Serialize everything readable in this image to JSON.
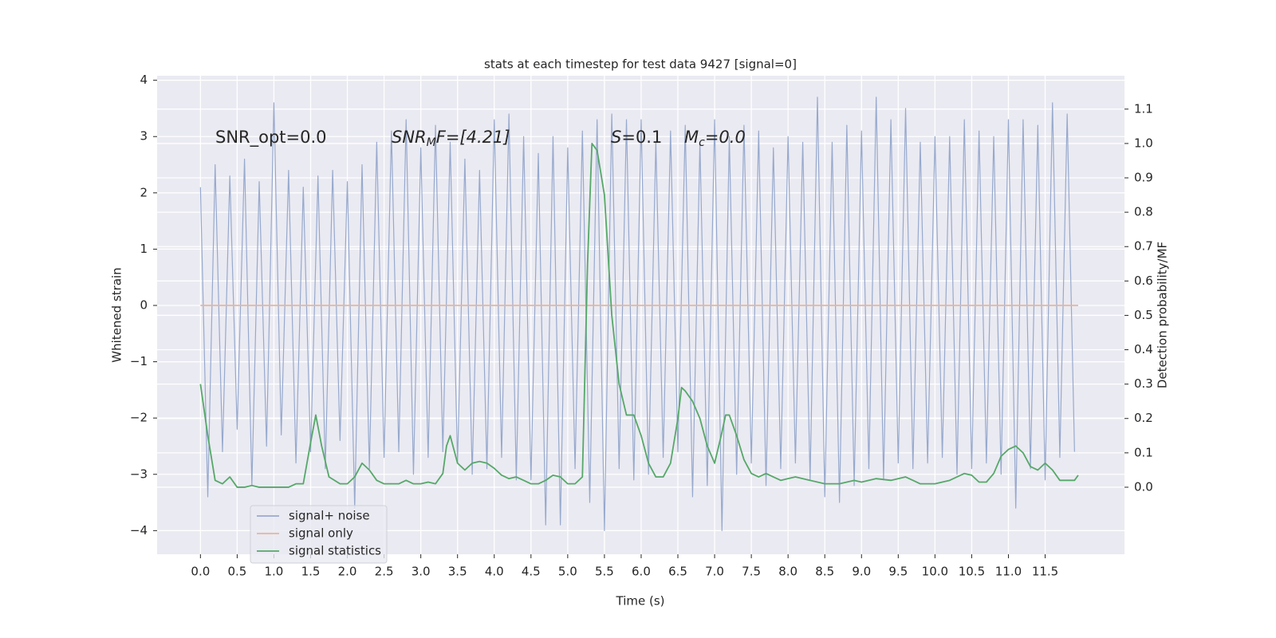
{
  "chart_data": {
    "type": "line",
    "title": "stats at each timestep for test data 9427 [signal=0]",
    "xlabel": "Time (s)",
    "ylabel": "Whitened strain",
    "y2label": "Detection probability/MF",
    "annotations": [
      {
        "text": "SNR_opt=0.0"
      },
      {
        "text": "SNR",
        "sub": "M",
        "rest": "F=[4.21]"
      },
      {
        "text": "S",
        "rest": "=0.1"
      },
      {
        "text": "M",
        "sub": "c",
        "rest": "=0.0"
      }
    ],
    "xlim": [
      -0.59,
      12.58
    ],
    "ylim": [
      -4.42,
      4.08
    ],
    "y2lim": [
      -0.195,
      1.197
    ],
    "xticks": [
      {
        "value": 0,
        "label": "0.0"
      },
      0.5,
      {
        "value": 1,
        "label": "1.0"
      },
      1.5,
      {
        "value": 2,
        "label": "2.0"
      },
      2.5,
      {
        "value": 3,
        "label": "3.0"
      },
      3.5,
      {
        "value": 4,
        "label": "4.0"
      },
      4.5,
      {
        "value": 5,
        "label": "5.0"
      },
      5.5,
      {
        "value": 6,
        "label": "6.0"
      },
      6.5,
      {
        "value": 7,
        "label": "7.0"
      },
      7.5,
      {
        "value": 8,
        "label": "8.0"
      },
      8.5,
      {
        "value": 9,
        "label": "9.0"
      },
      9.5,
      {
        "value": 10,
        "label": "10.0"
      },
      10.5,
      {
        "value": 11,
        "label": "11.0"
      },
      11.5
    ],
    "yticks": [
      {
        "value": -4,
        "label": "−4"
      },
      {
        "value": -3,
        "label": "−3"
      },
      {
        "value": -2,
        "label": "−2"
      },
      {
        "value": -1,
        "label": "−1"
      },
      0,
      1,
      2,
      3,
      4
    ],
    "y2ticks": [
      {
        "value": 0,
        "label": "0.0"
      },
      0.1,
      0.2,
      0.3,
      0.4,
      0.5,
      0.6,
      0.7,
      0.8,
      0.9,
      {
        "value": 1,
        "label": "1.0"
      },
      1.1
    ],
    "grid": true,
    "legend": "lower left",
    "series": [
      {
        "name": "signal+ noise",
        "color": "#97a9cd",
        "x": [
          0.0,
          0.1,
          0.2,
          0.3,
          0.4,
          0.5,
          0.6,
          0.7,
          0.8,
          0.9,
          1.0,
          1.1,
          1.2,
          1.3,
          1.4,
          1.5,
          1.6,
          1.7,
          1.8,
          1.9,
          2.0,
          2.1,
          2.2,
          2.3,
          2.4,
          2.5,
          2.6,
          2.7,
          2.8,
          2.9,
          3.0,
          3.1,
          3.2,
          3.3,
          3.4,
          3.5,
          3.6,
          3.7,
          3.8,
          3.9,
          4.0,
          4.1,
          4.2,
          4.3,
          4.4,
          4.5,
          4.6,
          4.7,
          4.8,
          4.9,
          5.0,
          5.1,
          5.2,
          5.3,
          5.4,
          5.5,
          5.6,
          5.7,
          5.8,
          5.9,
          6.0,
          6.1,
          6.2,
          6.3,
          6.4,
          6.5,
          6.6,
          6.7,
          6.8,
          6.9,
          7.0,
          7.1,
          7.2,
          7.3,
          7.4,
          7.5,
          7.6,
          7.7,
          7.8,
          7.9,
          8.0,
          8.1,
          8.2,
          8.3,
          8.4,
          8.5,
          8.6,
          8.7,
          8.8,
          8.9,
          9.0,
          9.1,
          9.2,
          9.3,
          9.4,
          9.5,
          9.6,
          9.7,
          9.8,
          9.9,
          10.0,
          10.1,
          10.2,
          10.3,
          10.4,
          10.5,
          10.6,
          10.7,
          10.8,
          10.9,
          11.0,
          11.1,
          11.2,
          11.3,
          11.4,
          11.5,
          11.6,
          11.7,
          11.8,
          11.9
        ],
        "values": [
          2.1,
          -3.4,
          2.5,
          -2.6,
          2.3,
          -2.2,
          2.6,
          -3.2,
          2.2,
          -2.5,
          3.6,
          -2.3,
          2.4,
          -2.8,
          2.1,
          -2.6,
          2.3,
          -2.9,
          2.4,
          -2.4,
          2.2,
          -3.6,
          2.5,
          -2.9,
          2.9,
          -2.7,
          3.1,
          -2.6,
          3.3,
          -3.0,
          2.8,
          -2.7,
          3.2,
          -2.6,
          2.9,
          -2.8,
          2.6,
          -3.0,
          2.4,
          -2.9,
          3.3,
          -2.7,
          3.4,
          -3.1,
          3.0,
          -3.1,
          2.7,
          -3.9,
          3.0,
          -3.9,
          2.8,
          -2.9,
          3.1,
          -3.5,
          3.3,
          -4.0,
          3.4,
          -2.9,
          3.3,
          -3.1,
          3.3,
          -3.0,
          2.9,
          -2.7,
          3.1,
          -2.6,
          3.2,
          -3.4,
          2.9,
          -3.2,
          3.3,
          -4.0,
          3.0,
          -3.0,
          3.2,
          -2.8,
          3.1,
          -3.2,
          2.8,
          -2.9,
          3.0,
          -2.8,
          2.9,
          -3.1,
          3.7,
          -3.4,
          2.9,
          -3.5,
          3.2,
          -3.2,
          3.1,
          -2.9,
          3.7,
          -3.1,
          3.3,
          -2.8,
          3.5,
          -2.9,
          2.9,
          -2.8,
          3.0,
          -2.7,
          3.0,
          -3.0,
          3.3,
          -2.9,
          3.1,
          -2.8,
          3.0,
          -3.0,
          3.3,
          -3.6,
          3.3,
          -2.9,
          3.2,
          -3.1,
          3.6,
          -2.7,
          3.4,
          -2.6
        ]
      },
      {
        "name": "signal only",
        "color": "#e8b49a",
        "x": [
          0.0,
          11.95
        ],
        "values": [
          0,
          0
        ]
      },
      {
        "name": "signal statistics",
        "color": "#55a868",
        "axis": "y2",
        "x": [
          0.0,
          0.1,
          0.2,
          0.3,
          0.4,
          0.5,
          0.6,
          0.7,
          0.8,
          0.9,
          1.0,
          1.1,
          1.2,
          1.3,
          1.4,
          1.5,
          1.57,
          1.65,
          1.75,
          1.9,
          2.0,
          2.1,
          2.2,
          2.3,
          2.4,
          2.5,
          2.7,
          2.8,
          2.9,
          3.0,
          3.1,
          3.2,
          3.3,
          3.35,
          3.4,
          3.5,
          3.6,
          3.7,
          3.8,
          3.9,
          4.0,
          4.1,
          4.2,
          4.3,
          4.4,
          4.5,
          4.6,
          4.7,
          4.8,
          4.9,
          5.0,
          5.1,
          5.2,
          5.27,
          5.33,
          5.4,
          5.5,
          5.6,
          5.7,
          5.8,
          5.9,
          6.0,
          6.1,
          6.2,
          6.3,
          6.4,
          6.5,
          6.55,
          6.6,
          6.7,
          6.8,
          6.9,
          7.0,
          7.1,
          7.15,
          7.2,
          7.3,
          7.4,
          7.5,
          7.6,
          7.7,
          7.8,
          7.9,
          8.0,
          8.1,
          8.3,
          8.5,
          8.7,
          8.9,
          9.0,
          9.2,
          9.4,
          9.6,
          9.8,
          10.0,
          10.2,
          10.4,
          10.5,
          10.6,
          10.7,
          10.8,
          10.9,
          11.0,
          11.1,
          11.2,
          11.3,
          11.4,
          11.5,
          11.6,
          11.7,
          11.9,
          11.95
        ],
        "values": [
          0.3,
          0.15,
          0.02,
          0.01,
          0.03,
          0.0,
          0.0,
          0.005,
          0.0,
          0.0,
          0.0,
          0.0,
          0.0,
          0.01,
          0.01,
          0.13,
          0.21,
          0.12,
          0.03,
          0.01,
          0.01,
          0.03,
          0.07,
          0.05,
          0.02,
          0.01,
          0.01,
          0.02,
          0.01,
          0.01,
          0.015,
          0.01,
          0.04,
          0.12,
          0.15,
          0.07,
          0.05,
          0.07,
          0.075,
          0.07,
          0.055,
          0.035,
          0.025,
          0.03,
          0.02,
          0.01,
          0.01,
          0.02,
          0.035,
          0.03,
          0.01,
          0.01,
          0.03,
          0.65,
          1.0,
          0.98,
          0.85,
          0.5,
          0.3,
          0.21,
          0.21,
          0.15,
          0.07,
          0.03,
          0.03,
          0.07,
          0.2,
          0.29,
          0.28,
          0.25,
          0.2,
          0.12,
          0.07,
          0.16,
          0.21,
          0.21,
          0.15,
          0.08,
          0.04,
          0.03,
          0.04,
          0.03,
          0.02,
          0.025,
          0.03,
          0.02,
          0.01,
          0.01,
          0.02,
          0.015,
          0.025,
          0.02,
          0.03,
          0.01,
          0.01,
          0.02,
          0.04,
          0.035,
          0.015,
          0.015,
          0.04,
          0.09,
          0.11,
          0.12,
          0.1,
          0.06,
          0.05,
          0.07,
          0.05,
          0.02,
          0.02,
          0.035
        ]
      }
    ]
  }
}
